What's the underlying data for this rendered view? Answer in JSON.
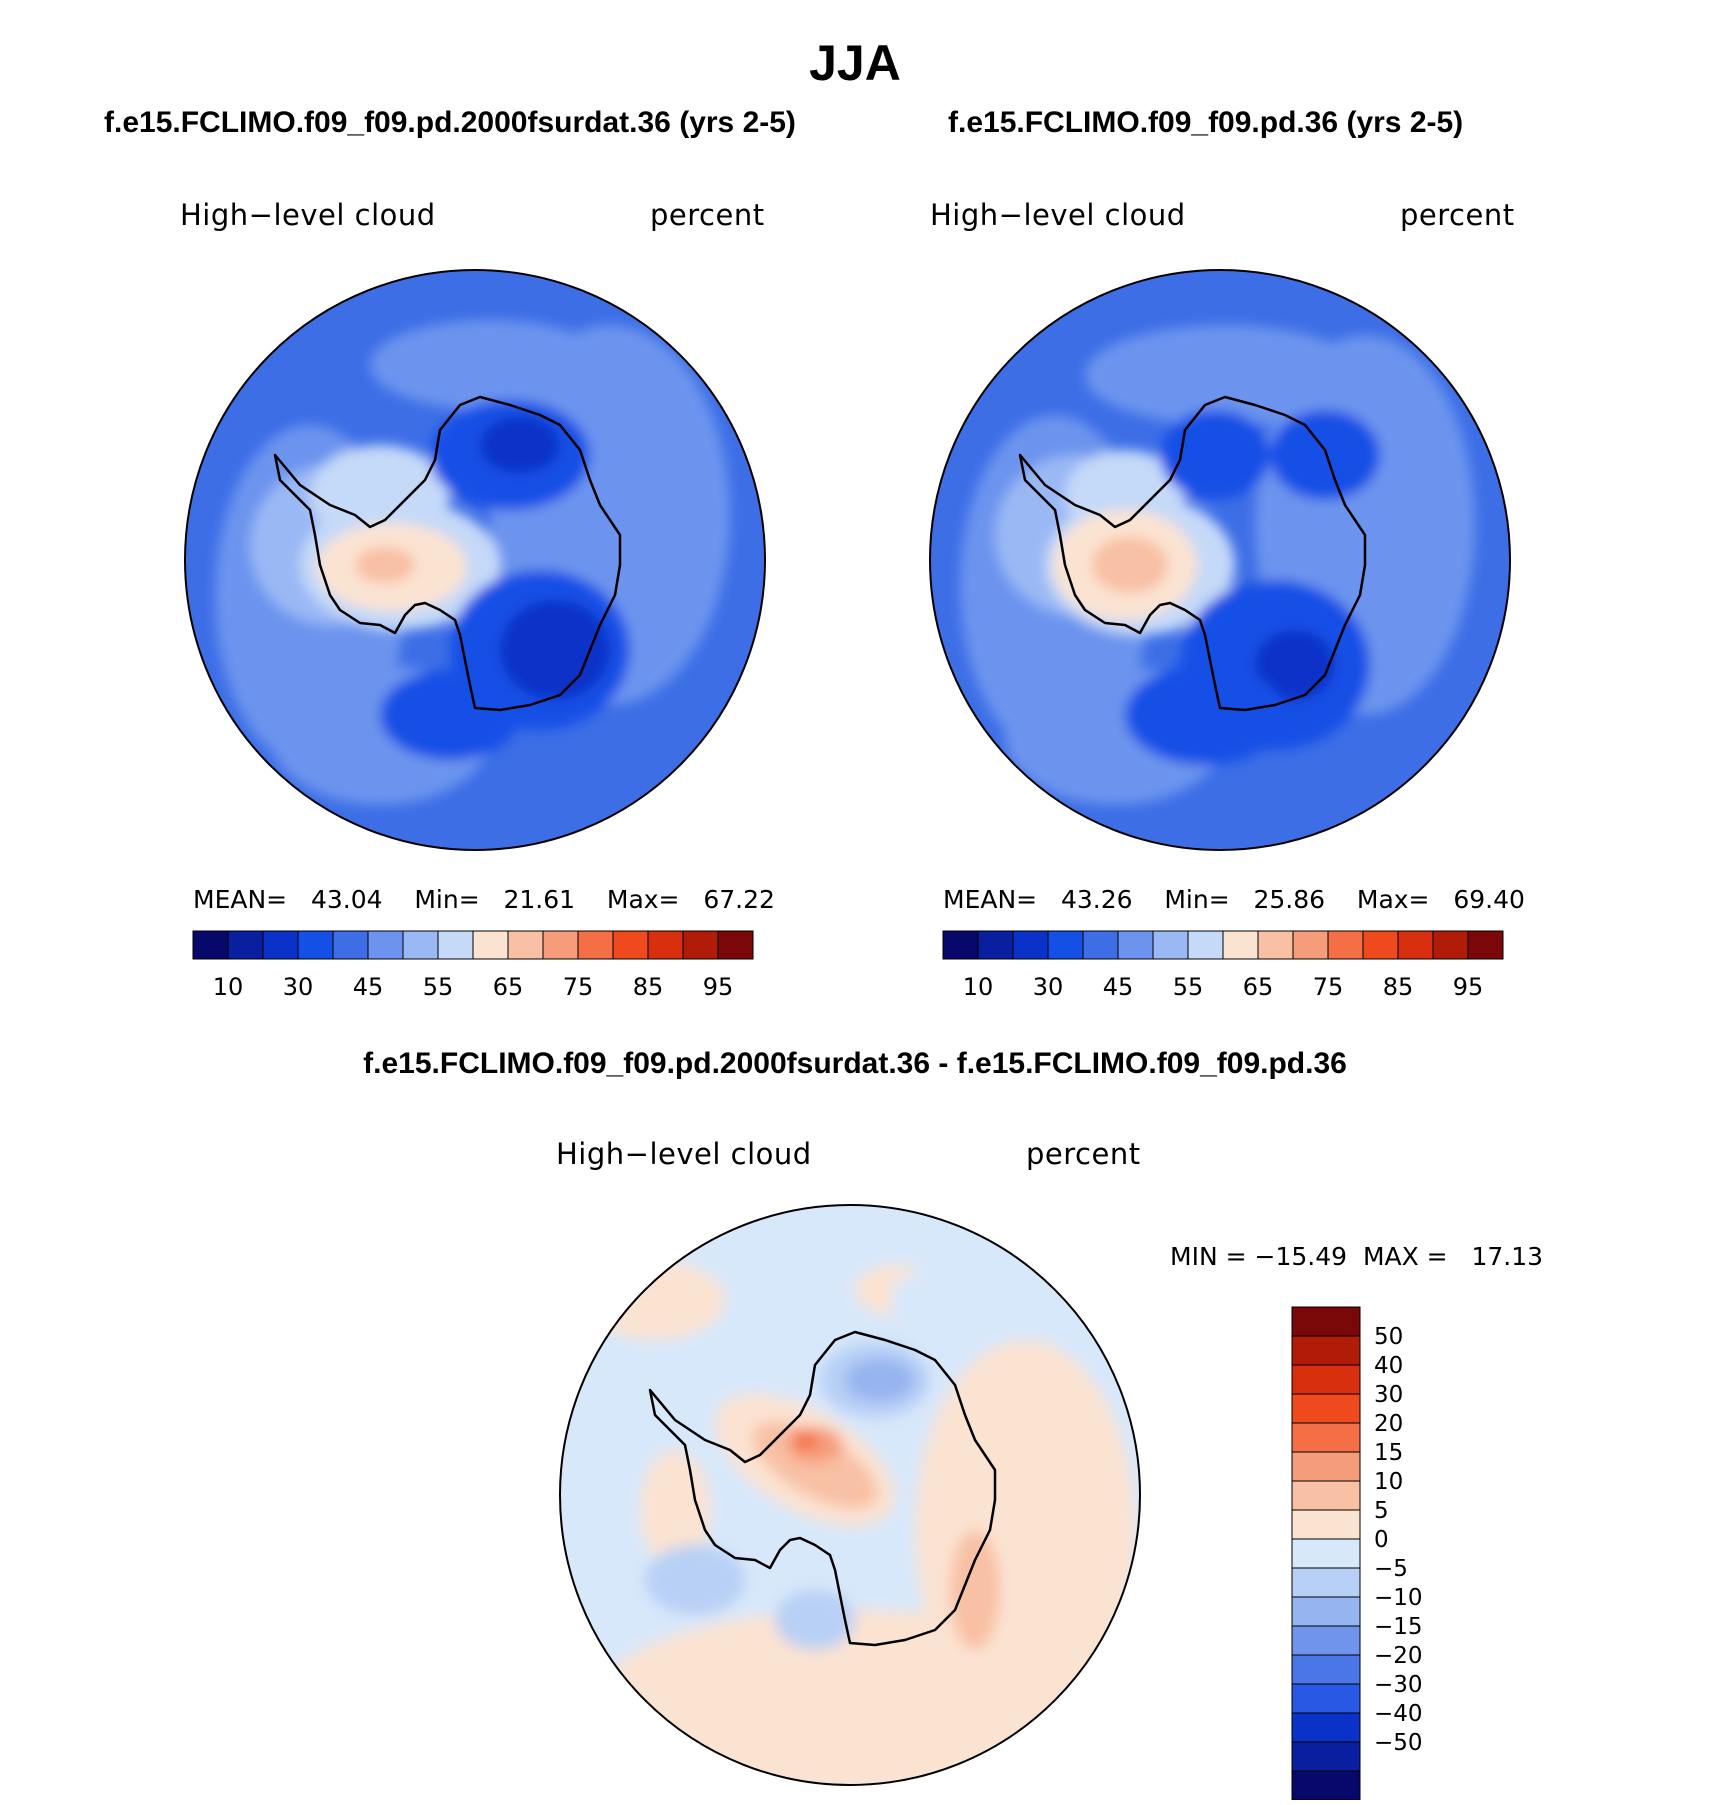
{
  "title": "JJA",
  "panels": [
    {
      "run_title": "f.e15.FCLIMO.f09_f09.pd.2000fsurdat.36 (yrs 2-5)",
      "variable": "High−level cloud",
      "units": "percent",
      "stats": {
        "mean_label": "MEAN=",
        "mean": "43.04",
        "min_label": "Min=",
        "min": "21.61",
        "max_label": "Max=",
        "max": "67.22"
      }
    },
    {
      "run_title": "f.e15.FCLIMO.f09_f09.pd.36 (yrs 2-5)",
      "variable": "High−level cloud",
      "units": "percent",
      "stats": {
        "mean_label": "MEAN=",
        "mean": "43.26",
        "min_label": "Min=",
        "min": "25.86",
        "max_label": "Max=",
        "max": "69.40"
      }
    }
  ],
  "diff_panel": {
    "run_title": "f.e15.FCLIMO.f09_f09.pd.2000fsurdat.36 - f.e15.FCLIMO.f09_f09.pd.36",
    "variable": "High−level cloud",
    "units": "percent",
    "stats": {
      "min_label": "MIN =",
      "min": "−15.49",
      "max_label": "MAX =",
      "max": "17.13"
    }
  },
  "colorbar_abs": {
    "colors": [
      "#08086b",
      "#0a1ea0",
      "#0b32c8",
      "#1450e6",
      "#3d6ee6",
      "#6c94ee",
      "#9ab8f4",
      "#c5d9f8",
      "#fbe3d2",
      "#f8c0a4",
      "#f59c7a",
      "#f46e46",
      "#ee4a1e",
      "#d8300e",
      "#b01c08",
      "#7a0808"
    ],
    "tick_labels": [
      "10",
      "30",
      "45",
      "55",
      "65",
      "75",
      "85",
      "95"
    ]
  },
  "colorbar_diff": {
    "colors": [
      "#7a0808",
      "#b01c08",
      "#d8300e",
      "#ee4a1e",
      "#f46e46",
      "#f59c7a",
      "#f8c0a4",
      "#fbe3d2",
      "#d8e8fb",
      "#b8d0f5",
      "#96b4f0",
      "#7094ec",
      "#4a76e8",
      "#2858e4",
      "#0b32c8",
      "#0a1ea0",
      "#08086b"
    ],
    "tick_labels": [
      "50",
      "40",
      "30",
      "20",
      "15",
      "10",
      "5",
      "0",
      "−5",
      "−10",
      "−15",
      "−20",
      "−30",
      "−40",
      "−50"
    ]
  },
  "chart_data": [
    {
      "type": "heatmap",
      "title": "f.e15.FCLIMO.f09_f09.pd.2000fsurdat.36 (yrs 2-5)",
      "variable": "High−level cloud",
      "units": "percent",
      "projection": "polar stereographic, south pole",
      "levels": [
        10,
        20,
        30,
        35,
        40,
        45,
        50,
        55,
        60,
        65,
        70,
        75,
        80,
        85,
        90,
        95
      ],
      "mean": 43.04,
      "min": 21.61,
      "max": 67.22
    },
    {
      "type": "heatmap",
      "title": "f.e15.FCLIMO.f09_f09.pd.36 (yrs 2-5)",
      "variable": "High−level cloud",
      "units": "percent",
      "projection": "polar stereographic, south pole",
      "levels": [
        10,
        20,
        30,
        35,
        40,
        45,
        50,
        55,
        60,
        65,
        70,
        75,
        80,
        85,
        90,
        95
      ],
      "mean": 43.26,
      "min": 25.86,
      "max": 69.4
    },
    {
      "type": "heatmap",
      "title": "f.e15.FCLIMO.f09_f09.pd.2000fsurdat.36 - f.e15.FCLIMO.f09_f09.pd.36",
      "variable": "High−level cloud",
      "units": "percent",
      "projection": "polar stereographic, south pole",
      "levels": [
        -50,
        -40,
        -30,
        -20,
        -15,
        -10,
        -5,
        0,
        5,
        10,
        15,
        20,
        30,
        40,
        50
      ],
      "min": -15.49,
      "max": 17.13
    }
  ]
}
